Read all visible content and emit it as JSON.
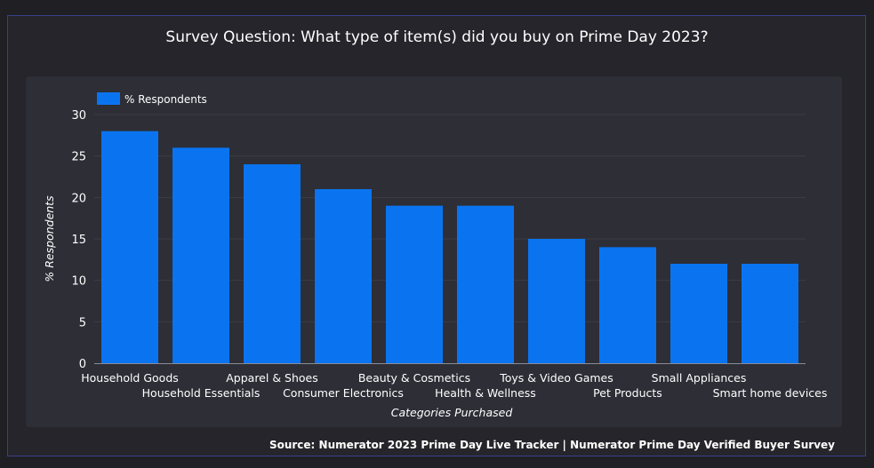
{
  "title": "Survey Question: What type of item(s) did you buy on Prime Day 2023?",
  "source": "Source: Numerator 2023 Prime Day Live Tracker | Numerator Prime Day Verified Buyer Survey",
  "colors": {
    "bar": "#0a74f0",
    "background": "#1f1f24",
    "panel": "#2d2e36",
    "text": "#ffffff",
    "grid": "#3b3c45"
  },
  "chart_data": {
    "type": "bar",
    "categories": [
      "Household Goods",
      "Household Essentials",
      "Apparel & Shoes",
      "Consumer Electronics",
      "Beauty & Cosmetics",
      "Health & Wellness",
      "Toys & Video Games",
      "Pet Products",
      "Small Appliances",
      "Smart home devices"
    ],
    "series": [
      {
        "name": "% Respondents",
        "values": [
          28,
          26,
          24,
          21,
          19,
          19,
          15,
          14,
          12,
          12
        ]
      }
    ],
    "xlabel": "Categories Purchased",
    "ylabel": "% Respondents",
    "ylim": [
      0,
      30
    ],
    "yticks": [
      0,
      5,
      10,
      15,
      20,
      25,
      30
    ],
    "legend": "top-left",
    "grid": true
  }
}
